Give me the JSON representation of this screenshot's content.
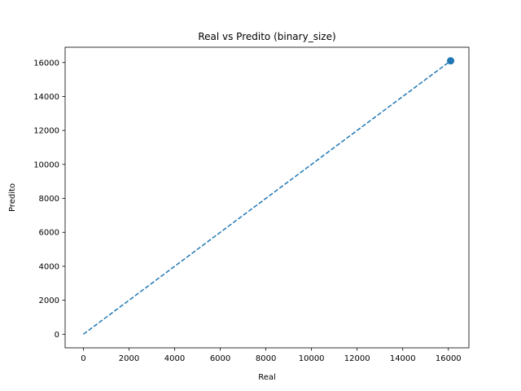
{
  "chart_data": {
    "type": "scatter",
    "title": "Real vs Predito (binary_size)",
    "xlabel": "Real",
    "ylabel": "Predito",
    "xlim": [
      -800,
      16900
    ],
    "ylim": [
      -800,
      16900
    ],
    "xticks": [
      0,
      2000,
      4000,
      6000,
      8000,
      10000,
      12000,
      14000,
      16000
    ],
    "yticks": [
      0,
      2000,
      4000,
      6000,
      8000,
      10000,
      12000,
      14000,
      16000
    ],
    "points": [
      {
        "x": 16100,
        "y": 16100
      }
    ],
    "reference_line": {
      "from": [
        0,
        0
      ],
      "to": [
        16100,
        16100
      ],
      "style": "dashed"
    },
    "grid": false,
    "legend": "none",
    "colors": {
      "series": "#1f77b4",
      "axis": "#000000"
    }
  }
}
